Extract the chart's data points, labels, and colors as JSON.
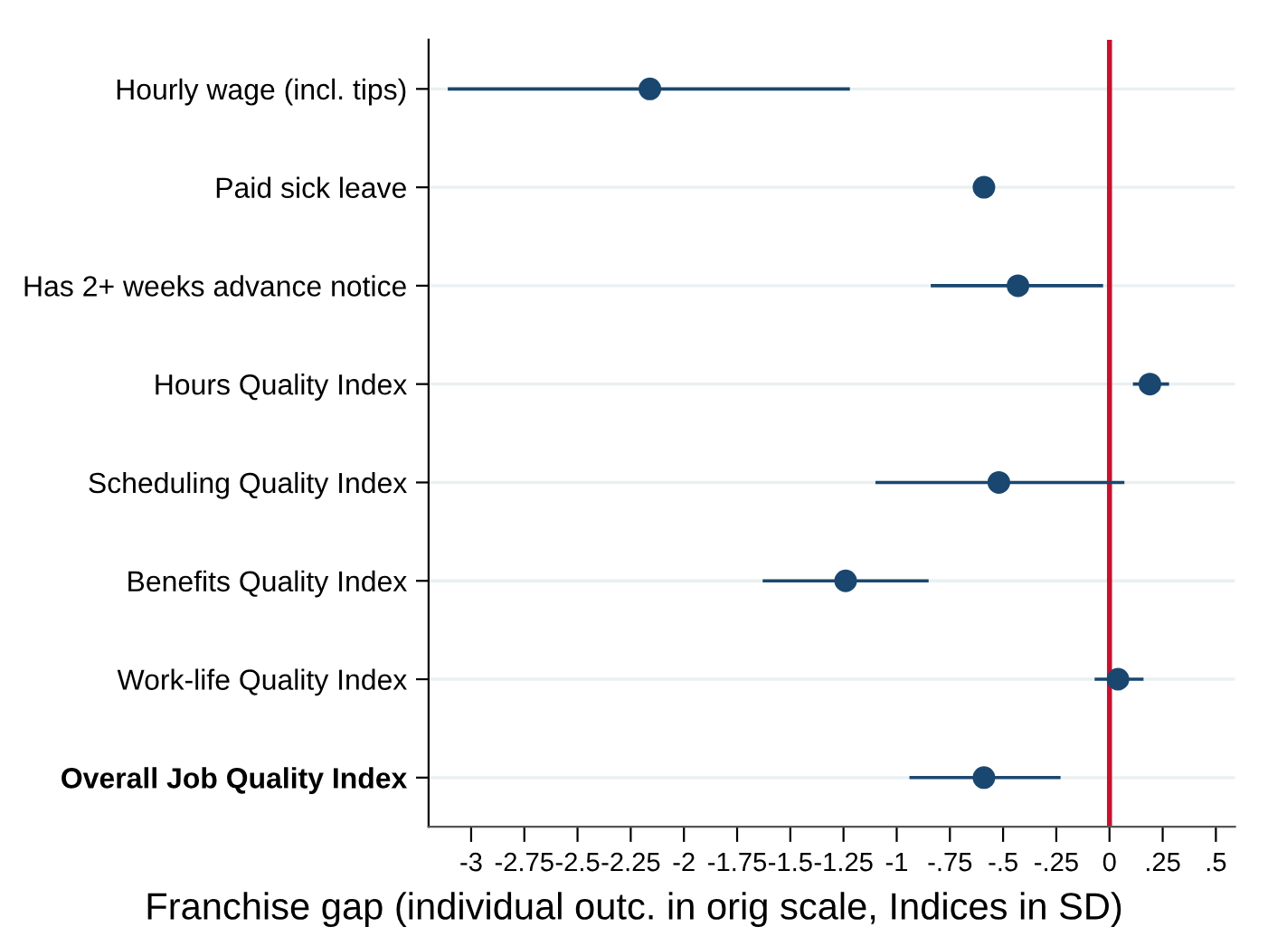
{
  "chart_data": {
    "type": "scatter",
    "orientation": "horizontal",
    "xlabel": "Franchise gap (individual outc. in orig scale, Indices in SD)",
    "categories": [
      "Hourly wage (incl. tips)",
      "Paid sick leave",
      "Has 2+ weeks advance notice",
      "Hours Quality Index",
      "Scheduling Quality Index",
      "Benefits Quality Index",
      "Work-life Quality Index",
      "Overall Job Quality Index"
    ],
    "color": "#1a476f",
    "values": [
      -2.16,
      -0.59,
      -0.43,
      0.19,
      -0.52,
      -1.24,
      0.04,
      -0.59
    ],
    "errors": [
      [
        -3.11,
        -1.22
      ],
      [
        -0.63,
        -0.54
      ],
      [
        -0.84,
        -0.03
      ],
      [
        0.11,
        0.28
      ],
      [
        -1.1,
        0.07
      ],
      [
        -1.63,
        -0.85
      ],
      [
        -0.07,
        0.16
      ],
      [
        -0.94,
        -0.23
      ]
    ],
    "xlim": [
      -3.2,
      0.59
    ],
    "xticks": [
      -3,
      {
        "value": -2.75,
        "label": "-2.75"
      },
      {
        "value": -2.5,
        "label": "-2.5"
      },
      {
        "value": -2.25,
        "label": "-2.25"
      },
      -2,
      {
        "value": -1.75,
        "label": "-1.75"
      },
      {
        "value": -1.5,
        "label": "-1.5"
      },
      {
        "value": -1.25,
        "label": "-1.25"
      },
      -1,
      {
        "value": -0.75,
        "label": "-.75"
      },
      {
        "value": -0.5,
        "label": "-.5"
      },
      {
        "value": -0.25,
        "label": "-.25"
      },
      0,
      {
        "value": 0.25,
        "label": ".25"
      },
      {
        "value": 0.5,
        "label": ".5"
      }
    ],
    "ref_lines": [
      {
        "axis": "x",
        "value": 0,
        "color": "#c8102e"
      }
    ],
    "grid": "y",
    "marker": "circle"
  }
}
